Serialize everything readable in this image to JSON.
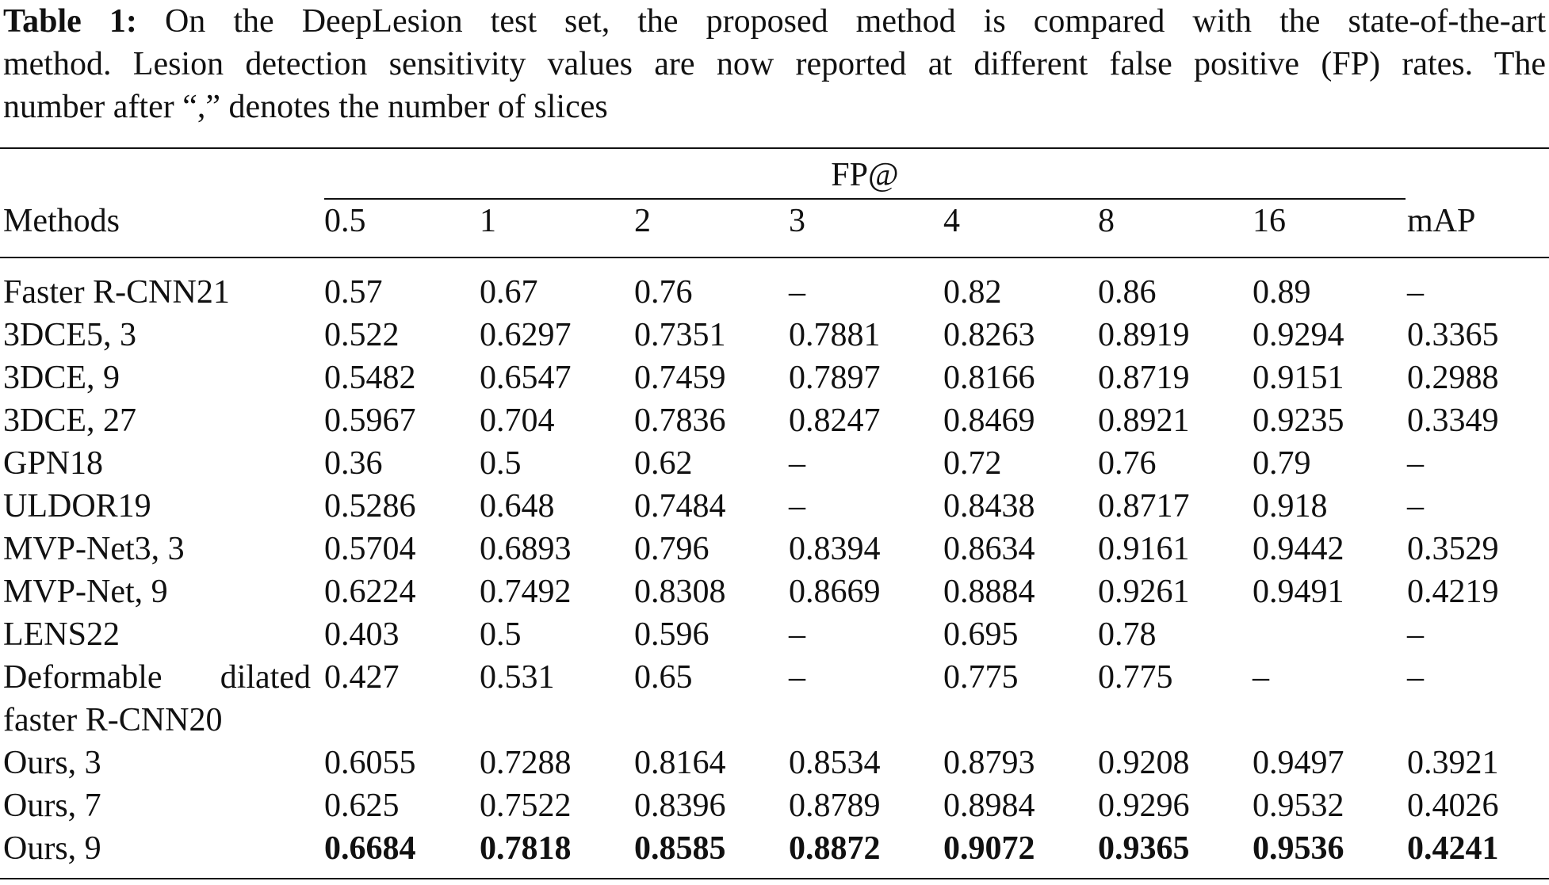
{
  "caption": {
    "label": "Table 1:",
    "line1": "On the DeepLesion test set, the proposed method is compared with the state-of-the-art",
    "line2": "method. Lesion detection sensitivity values are now reported at different false positive (FP) rates. The",
    "line3": "number after “,” denotes the number of slices"
  },
  "table": {
    "group_header": "FP@",
    "columns": [
      "Methods",
      "0.5",
      "1",
      "2",
      "3",
      "4",
      "8",
      "16",
      "mAP"
    ],
    "rows": [
      {
        "method": "Faster R-CNN21",
        "values": [
          "0.57",
          "0.67",
          "0.76",
          "–",
          "0.82",
          "0.86",
          "0.89",
          "–"
        ]
      },
      {
        "method": "3DCE5, 3",
        "values": [
          "0.522",
          "0.6297",
          "0.7351",
          "0.7881",
          "0.8263",
          "0.8919",
          "0.9294",
          "0.3365"
        ]
      },
      {
        "method": "3DCE, 9",
        "values": [
          "0.5482",
          "0.6547",
          "0.7459",
          "0.7897",
          "0.8166",
          "0.8719",
          "0.9151",
          "0.2988"
        ]
      },
      {
        "method": "3DCE, 27",
        "values": [
          "0.5967",
          "0.704",
          "0.7836",
          "0.8247",
          "0.8469",
          "0.8921",
          "0.9235",
          "0.3349"
        ]
      },
      {
        "method": "GPN18",
        "values": [
          "0.36",
          "0.5",
          "0.62",
          "–",
          "0.72",
          "0.76",
          "0.79",
          "–"
        ]
      },
      {
        "method": "ULDOR19",
        "values": [
          "0.5286",
          "0.648",
          "0.7484",
          "–",
          "0.8438",
          "0.8717",
          "0.918",
          "–"
        ]
      },
      {
        "method": "MVP-Net3, 3",
        "values": [
          "0.5704",
          "0.6893",
          "0.796",
          "0.8394",
          "0.8634",
          "0.9161",
          "0.9442",
          "0.3529"
        ]
      },
      {
        "method": "MVP-Net, 9",
        "values": [
          "0.6224",
          "0.7492",
          "0.8308",
          "0.8669",
          "0.8884",
          "0.9261",
          "0.9491",
          "0.4219"
        ]
      },
      {
        "method": "LENS22",
        "values": [
          "0.403",
          "0.5",
          "0.596",
          "–",
          "0.695",
          "0.78",
          "",
          "–"
        ]
      },
      {
        "method_line1": "Deformable dilated",
        "method_line2": "faster R-CNN20",
        "values": [
          "0.427",
          "0.531",
          "0.65",
          "–",
          "0.775",
          "0.775",
          "–",
          "–"
        ]
      },
      {
        "method": "Ours, 3",
        "values": [
          "0.6055",
          "0.7288",
          "0.8164",
          "0.8534",
          "0.8793",
          "0.9208",
          "0.9497",
          "0.3921"
        ]
      },
      {
        "method": "Ours, 7",
        "values": [
          "0.625",
          "0.7522",
          "0.8396",
          "0.8789",
          "0.8984",
          "0.9296",
          "0.9532",
          "0.4026"
        ]
      },
      {
        "method": "Ours, 9",
        "values": [
          "0.6684",
          "0.7818",
          "0.8585",
          "0.8872",
          "0.9072",
          "0.9365",
          "0.9536",
          "0.4241"
        ]
      }
    ]
  }
}
